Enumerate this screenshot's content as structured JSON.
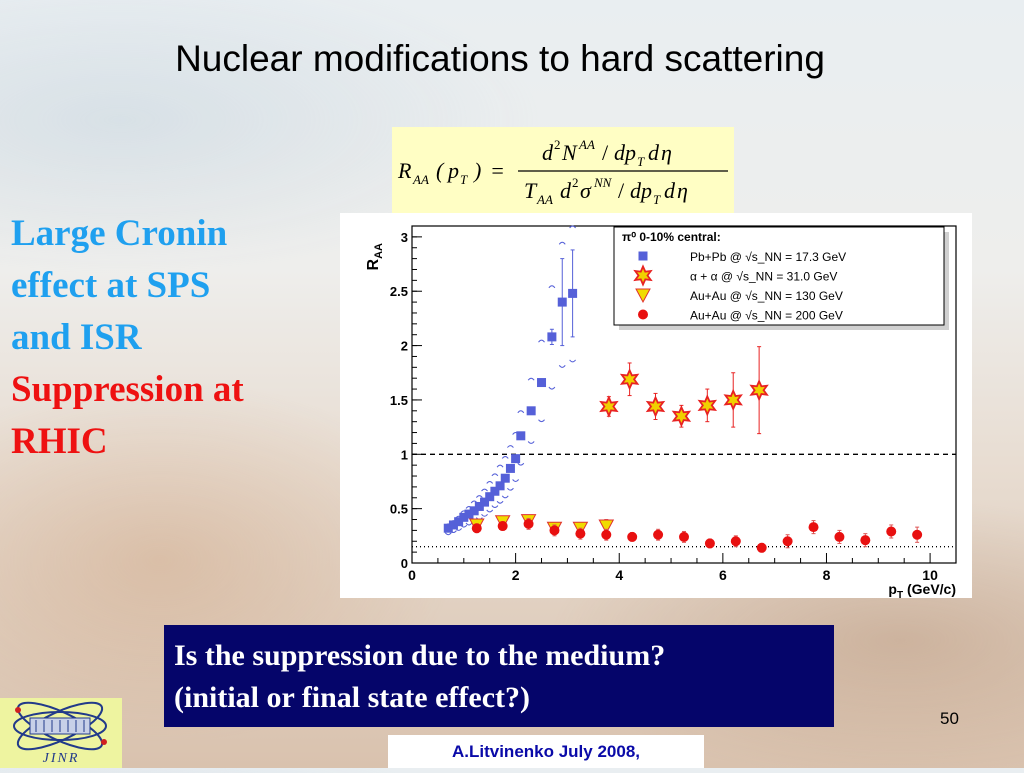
{
  "slide": {
    "title": "Nuclear modifications to hard scattering",
    "side_text": {
      "blue": [
        "Large Cronin",
        "effect at SPS",
        "and ISR"
      ],
      "red": [
        "Suppression at",
        "RHIC"
      ]
    },
    "question": [
      "Is the suppression due to the medium?",
      "(initial or final state effect?)"
    ],
    "page_number": "50",
    "footer": "A.Litvinenko July  2008,",
    "logo_text": "JINR"
  },
  "formula": {
    "lhs": "R",
    "lhs_sub": "AA",
    "arg": "p",
    "arg_sub": "T",
    "numerator": "d²N^AA / dp_T dη",
    "denominator": "T_AA d²σ^NN / dp_T dη"
  },
  "chart_data": {
    "type": "scatter",
    "xlabel": "p_T (GeV/c)",
    "ylabel": "R_AA",
    "xlim": [
      0,
      10.5
    ],
    "ylim": [
      0,
      3.1
    ],
    "x_ticks": [
      "0",
      "2",
      "4",
      "6",
      "8",
      "10"
    ],
    "y_ticks": [
      "0",
      "0.5",
      "1",
      "1.5",
      "2",
      "2.5",
      "3"
    ],
    "reference_lines": [
      {
        "y": 1.0,
        "style": "dashed"
      },
      {
        "y": 0.15,
        "style": "dotted"
      }
    ],
    "legend": {
      "title": "π⁰ 0-10% central:",
      "position": "top-right"
    },
    "colors": {
      "pbpb": "#5560d8",
      "alpha": "#e82222",
      "alpha_fill": "#f0d000",
      "au130": "#f0dc00",
      "au130_edge": "#e03030",
      "au200": "#e81010",
      "au200_error": "#dd5555"
    },
    "series": [
      {
        "name": "Pb+Pb @ √s_NN = 17.3 GeV",
        "marker": "square",
        "x": [
          0.7,
          0.8,
          0.9,
          1.0,
          1.1,
          1.2,
          1.3,
          1.4,
          1.5,
          1.6,
          1.7,
          1.8,
          1.9,
          2.0,
          2.1,
          2.3,
          2.5,
          2.7,
          2.9,
          3.1
        ],
        "y": [
          0.32,
          0.35,
          0.38,
          0.42,
          0.45,
          0.48,
          0.52,
          0.56,
          0.61,
          0.66,
          0.71,
          0.78,
          0.87,
          0.96,
          1.17,
          1.4,
          1.66,
          2.08,
          2.4,
          2.48
        ],
        "err": [
          0.02,
          0.02,
          0.02,
          0.02,
          0.02,
          0.02,
          0.02,
          0.02,
          0.02,
          0.02,
          0.02,
          0.02,
          0.02,
          0.02,
          0.02,
          0.02,
          0.03,
          0.07,
          0.4,
          0.4
        ],
        "syshi": [
          0.36,
          0.39,
          0.43,
          0.48,
          0.52,
          0.57,
          0.62,
          0.68,
          0.75,
          0.82,
          0.9,
          0.98,
          1.08,
          1.2,
          1.4,
          1.7,
          2.05,
          2.55,
          2.95,
          3.1
        ],
        "syslo": [
          0.26,
          0.28,
          0.3,
          0.33,
          0.35,
          0.37,
          0.4,
          0.43,
          0.47,
          0.51,
          0.55,
          0.6,
          0.67,
          0.75,
          0.9,
          1.1,
          1.3,
          1.6,
          1.8,
          1.85
        ]
      },
      {
        "name": "α + α  @ √s_NN = 31.0 GeV",
        "marker": "star",
        "x": [
          3.8,
          4.2,
          4.7,
          5.2,
          5.7,
          6.2,
          6.7
        ],
        "y": [
          1.44,
          1.69,
          1.44,
          1.35,
          1.45,
          1.5,
          1.59
        ],
        "err": [
          0.09,
          0.15,
          0.12,
          0.1,
          0.15,
          0.25,
          0.4
        ]
      },
      {
        "name": "Au+Au @ √s_NN = 130 GeV",
        "marker": "triangle-down",
        "x": [
          1.25,
          1.75,
          2.25,
          2.75,
          3.25,
          3.75
        ],
        "y": [
          0.35,
          0.38,
          0.39,
          0.32,
          0.32,
          0.34
        ],
        "err": [
          0.05,
          0.05,
          0.05,
          0.05,
          0.05,
          0.06
        ]
      },
      {
        "name": "Au+Au @ √s_NN = 200 GeV",
        "marker": "circle",
        "x": [
          1.25,
          1.75,
          2.25,
          2.75,
          3.25,
          3.75,
          4.25,
          4.75,
          5.25,
          5.75,
          6.25,
          6.75,
          7.25,
          7.75,
          8.25,
          8.75,
          9.25,
          9.75
        ],
        "y": [
          0.32,
          0.34,
          0.36,
          0.3,
          0.27,
          0.26,
          0.24,
          0.26,
          0.24,
          0.18,
          0.2,
          0.14,
          0.2,
          0.33,
          0.24,
          0.21,
          0.29,
          0.26
        ],
        "err": [
          0.04,
          0.04,
          0.05,
          0.05,
          0.05,
          0.05,
          0.04,
          0.05,
          0.05,
          0.04,
          0.05,
          0.04,
          0.06,
          0.06,
          0.06,
          0.06,
          0.06,
          0.07
        ]
      }
    ]
  }
}
